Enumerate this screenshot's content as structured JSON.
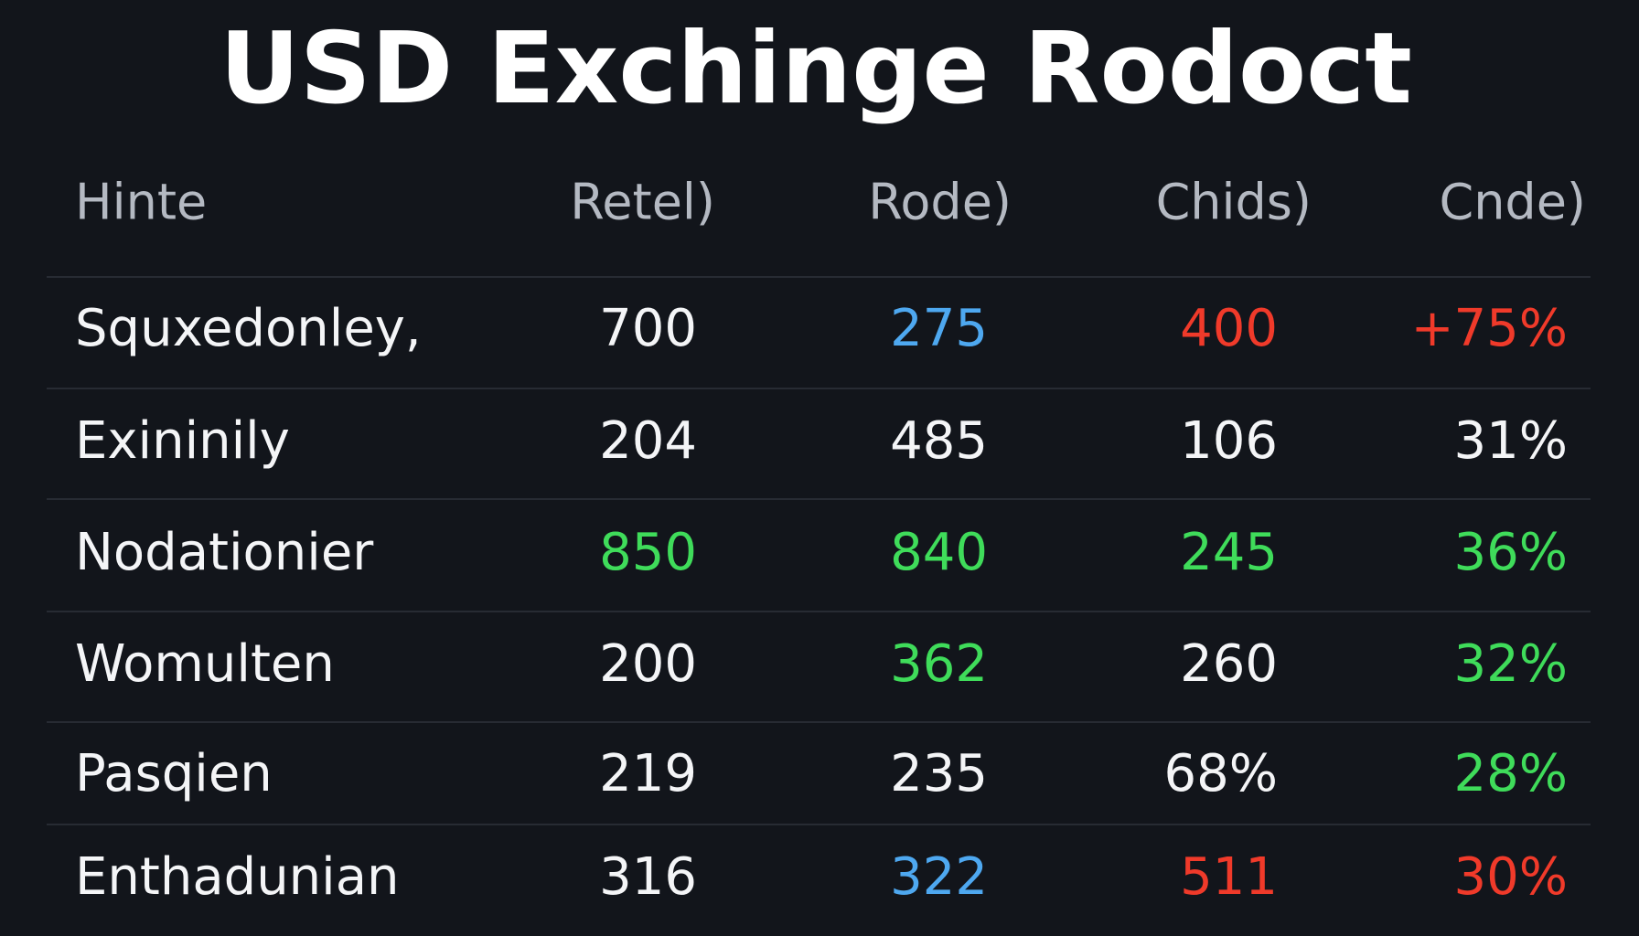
{
  "header": {
    "title": "USD Exchinge Rodoct"
  },
  "table": {
    "columns": [
      "Hinte",
      "Retel)",
      "Rode)",
      "Chids)",
      "Cnde)"
    ],
    "rows": [
      {
        "label": "Squxedonley,",
        "cells": [
          {
            "text": "700",
            "color": "#f4f5f7"
          },
          {
            "text": "275",
            "color": "#4ea8f0"
          },
          {
            "text": "400",
            "color": "#f03a2a"
          },
          {
            "text": "+75%",
            "color": "#f03a2a"
          }
        ]
      },
      {
        "label": "Exininily",
        "cells": [
          {
            "text": "204",
            "color": "#f4f5f7"
          },
          {
            "text": "485",
            "color": "#f4f5f7"
          },
          {
            "text": "106",
            "color": "#f4f5f7"
          },
          {
            "text": "31%",
            "color": "#f4f5f7"
          }
        ]
      },
      {
        "label": "Nodationier",
        "cells": [
          {
            "text": "850",
            "color": "#3fdc5a"
          },
          {
            "text": "840",
            "color": "#3fdc5a"
          },
          {
            "text": "245",
            "color": "#3fdc5a"
          },
          {
            "text": "36%",
            "color": "#3fdc5a"
          }
        ]
      },
      {
        "label": "Womulten",
        "cells": [
          {
            "text": "200",
            "color": "#f4f5f7"
          },
          {
            "text": "362",
            "color": "#3fdc5a"
          },
          {
            "text": "260",
            "color": "#f4f5f7"
          },
          {
            "text": "32%",
            "color": "#3fdc5a"
          }
        ]
      },
      {
        "label": "Pasqien",
        "cells": [
          {
            "text": "219",
            "color": "#f4f5f7"
          },
          {
            "text": "235",
            "color": "#f4f5f7"
          },
          {
            "text": "68%",
            "color": "#f4f5f7"
          },
          {
            "text": "28%",
            "color": "#3fdc5a"
          }
        ]
      },
      {
        "label": "Enthadunian",
        "cells": [
          {
            "text": "316",
            "color": "#f4f5f7"
          },
          {
            "text": "322",
            "color": "#4ea8f0"
          },
          {
            "text": "511",
            "color": "#f03a2a"
          },
          {
            "text": "30%",
            "color": "#f03a2a"
          }
        ]
      }
    ]
  }
}
